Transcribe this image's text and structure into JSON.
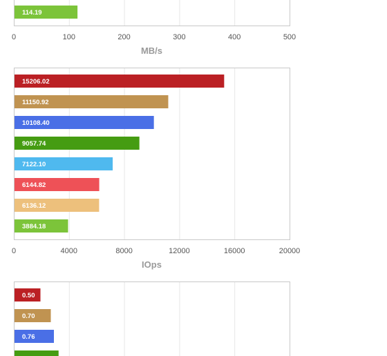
{
  "chart_data": [
    {
      "type": "bar",
      "orientation": "horizontal",
      "xlabel": "MB/s",
      "xlim": [
        0,
        500
      ],
      "xticks": [
        "0",
        "100",
        "200",
        "300",
        "400",
        "500"
      ],
      "grid": true,
      "visible_values": [
        114.19
      ],
      "value_labels": [
        "114.19"
      ],
      "colors": [
        "#7cc43a"
      ],
      "note_cropped": "Only the last bar is visible; chart is cut off at top."
    },
    {
      "type": "bar",
      "orientation": "horizontal",
      "xlabel": "IOps",
      "xlim": [
        0,
        20000
      ],
      "xticks": [
        "0",
        "4000",
        "8000",
        "12000",
        "16000",
        "20000"
      ],
      "grid": true,
      "values": [
        15206.02,
        11150.92,
        10108.4,
        9057.74,
        7122.1,
        6144.82,
        6136.12,
        3884.18
      ],
      "value_labels": [
        "15206.02",
        "11150.92",
        "10108.40",
        "9057.74",
        "7122.10",
        "6144.82",
        "6136.12",
        "3884.18"
      ],
      "colors": [
        "#bb2024",
        "#c09351",
        "#4a6fe6",
        "#459c12",
        "#4fb9ef",
        "#ee5157",
        "#edc07c",
        "#7cc43a"
      ]
    },
    {
      "type": "bar",
      "orientation": "horizontal",
      "xlim": [
        0,
        500
      ],
      "grid": true,
      "visible_values": [
        0.5,
        0.7,
        0.76
      ],
      "value_labels": [
        "0.50",
        "0.70",
        "0.76"
      ],
      "colors": [
        "#bb2024",
        "#c09351",
        "#4a6fe6",
        "#459c12"
      ],
      "note_cropped": "Chart is cut off at the bottom after the fourth bar."
    }
  ]
}
